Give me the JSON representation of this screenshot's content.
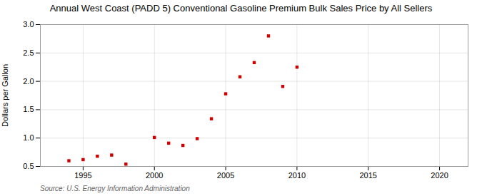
{
  "chart_data": {
    "type": "scatter",
    "title": "Annual West Coast (PADD 5) Conventional Gasoline Premium Bulk Sales Price by All Sellers",
    "ylabel": "Dollars per Gallon",
    "source": "Source: U.S. Energy Information Administration",
    "x": [
      1994,
      1995,
      1996,
      1997,
      1998,
      2000,
      2001,
      2002,
      2003,
      2004,
      2005,
      2006,
      2007,
      2008,
      2009,
      2010
    ],
    "values": [
      0.6,
      0.62,
      0.68,
      0.7,
      0.54,
      1.01,
      0.91,
      0.87,
      0.99,
      1.34,
      1.78,
      2.08,
      2.33,
      2.8,
      1.91,
      2.25
    ],
    "color": "#cc0000",
    "marker": "square",
    "xlim": [
      1992,
      2022
    ],
    "ylim": [
      0.5,
      3.0
    ],
    "xticks": [
      1995,
      2000,
      2005,
      2010,
      2015,
      2020
    ],
    "yticks": [
      0.5,
      {
        "value": 1,
        "label": "1.0"
      },
      1.5,
      {
        "value": 2,
        "label": "2.0"
      },
      2.5,
      {
        "value": 3,
        "label": "3.0"
      }
    ],
    "grid": true
  }
}
